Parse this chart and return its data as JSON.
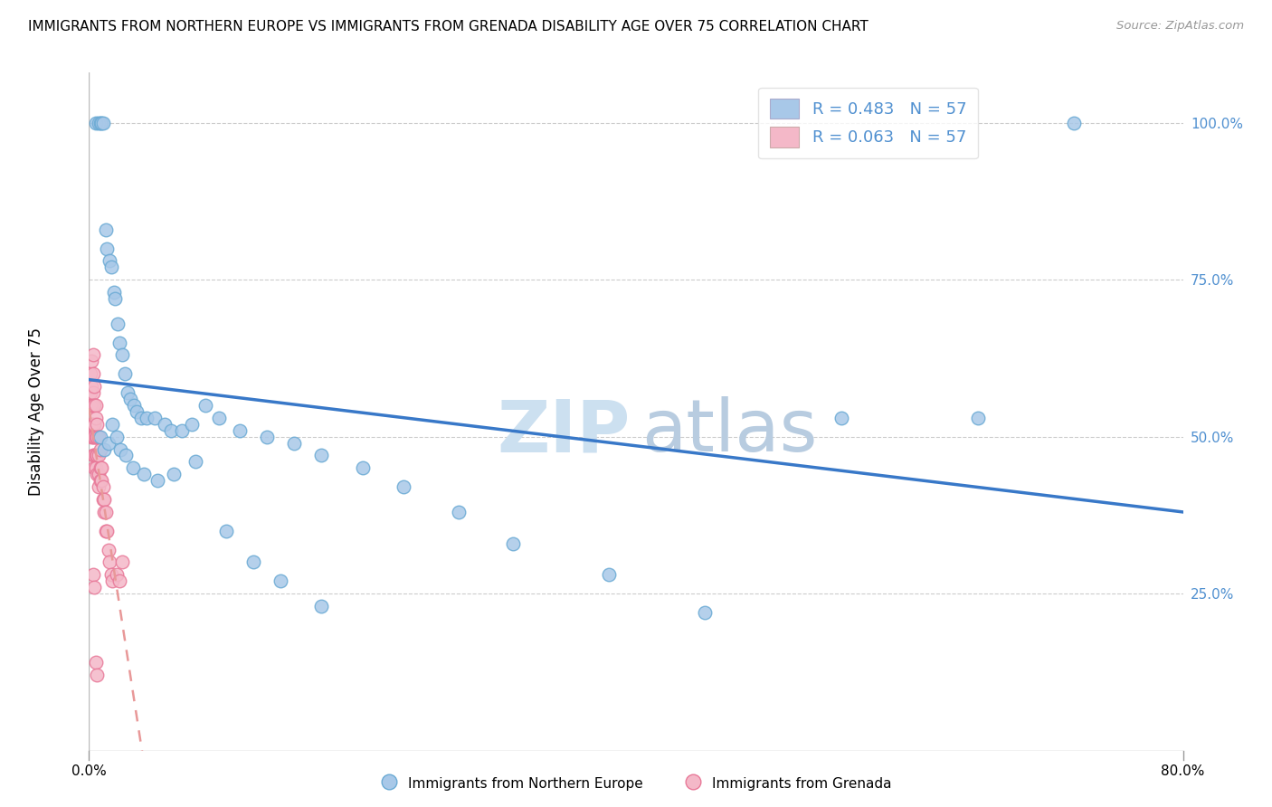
{
  "title": "IMMIGRANTS FROM NORTHERN EUROPE VS IMMIGRANTS FROM GRENADA DISABILITY AGE OVER 75 CORRELATION CHART",
  "source": "Source: ZipAtlas.com",
  "ylabel": "Disability Age Over 75",
  "legend1_label": "R = 0.483   N = 57",
  "legend2_label": "R = 0.063   N = 57",
  "blue_color": "#a8c8e8",
  "blue_edge_color": "#6aaad4",
  "pink_color": "#f4b8c8",
  "pink_edge_color": "#e87898",
  "blue_line_color": "#3878c8",
  "pink_line_color": "#e89898",
  "right_tick_color": "#5090d0",
  "right_ytick_vals": [
    0.25,
    0.5,
    0.75,
    1.0
  ],
  "right_ytick_labels": [
    "25.0%",
    "50.0%",
    "75.0%",
    "100.0%"
  ],
  "blue_x": [
    0.005,
    0.007,
    0.008,
    0.009,
    0.01,
    0.012,
    0.013,
    0.015,
    0.016,
    0.018,
    0.019,
    0.021,
    0.022,
    0.024,
    0.026,
    0.028,
    0.03,
    0.033,
    0.035,
    0.038,
    0.042,
    0.048,
    0.055,
    0.06,
    0.068,
    0.075,
    0.085,
    0.095,
    0.11,
    0.13,
    0.15,
    0.17,
    0.2,
    0.23,
    0.27,
    0.31,
    0.38,
    0.45,
    0.55,
    0.65,
    0.72,
    0.008,
    0.011,
    0.014,
    0.017,
    0.02,
    0.023,
    0.027,
    0.032,
    0.04,
    0.05,
    0.062,
    0.078,
    0.1,
    0.12,
    0.14,
    0.17
  ],
  "blue_y": [
    1.0,
    1.0,
    1.0,
    1.0,
    1.0,
    0.83,
    0.8,
    0.78,
    0.77,
    0.73,
    0.72,
    0.68,
    0.65,
    0.63,
    0.6,
    0.57,
    0.56,
    0.55,
    0.54,
    0.53,
    0.53,
    0.53,
    0.52,
    0.51,
    0.51,
    0.52,
    0.55,
    0.53,
    0.51,
    0.5,
    0.49,
    0.47,
    0.45,
    0.42,
    0.38,
    0.33,
    0.28,
    0.22,
    0.53,
    0.53,
    1.0,
    0.5,
    0.48,
    0.49,
    0.52,
    0.5,
    0.48,
    0.47,
    0.45,
    0.44,
    0.43,
    0.44,
    0.46,
    0.35,
    0.3,
    0.27,
    0.23
  ],
  "pink_x": [
    0.001,
    0.001,
    0.001,
    0.002,
    0.002,
    0.002,
    0.002,
    0.002,
    0.003,
    0.003,
    0.003,
    0.003,
    0.003,
    0.003,
    0.003,
    0.004,
    0.004,
    0.004,
    0.004,
    0.004,
    0.004,
    0.005,
    0.005,
    0.005,
    0.005,
    0.005,
    0.006,
    0.006,
    0.006,
    0.006,
    0.007,
    0.007,
    0.007,
    0.007,
    0.008,
    0.008,
    0.008,
    0.009,
    0.009,
    0.01,
    0.01,
    0.011,
    0.011,
    0.012,
    0.012,
    0.013,
    0.014,
    0.015,
    0.016,
    0.017,
    0.02,
    0.022,
    0.024,
    0.003,
    0.004,
    0.005,
    0.006
  ],
  "pink_y": [
    0.6,
    0.57,
    0.55,
    0.62,
    0.58,
    0.55,
    0.52,
    0.5,
    0.63,
    0.6,
    0.57,
    0.55,
    0.52,
    0.5,
    0.47,
    0.58,
    0.55,
    0.52,
    0.5,
    0.47,
    0.45,
    0.55,
    0.53,
    0.5,
    0.47,
    0.45,
    0.52,
    0.5,
    0.47,
    0.44,
    0.5,
    0.47,
    0.44,
    0.42,
    0.48,
    0.45,
    0.43,
    0.45,
    0.43,
    0.42,
    0.4,
    0.4,
    0.38,
    0.38,
    0.35,
    0.35,
    0.32,
    0.3,
    0.28,
    0.27,
    0.28,
    0.27,
    0.3,
    0.28,
    0.26,
    0.14,
    0.12
  ],
  "watermark_zip_color": "#cce0f0",
  "watermark_atlas_color": "#b8cce0"
}
